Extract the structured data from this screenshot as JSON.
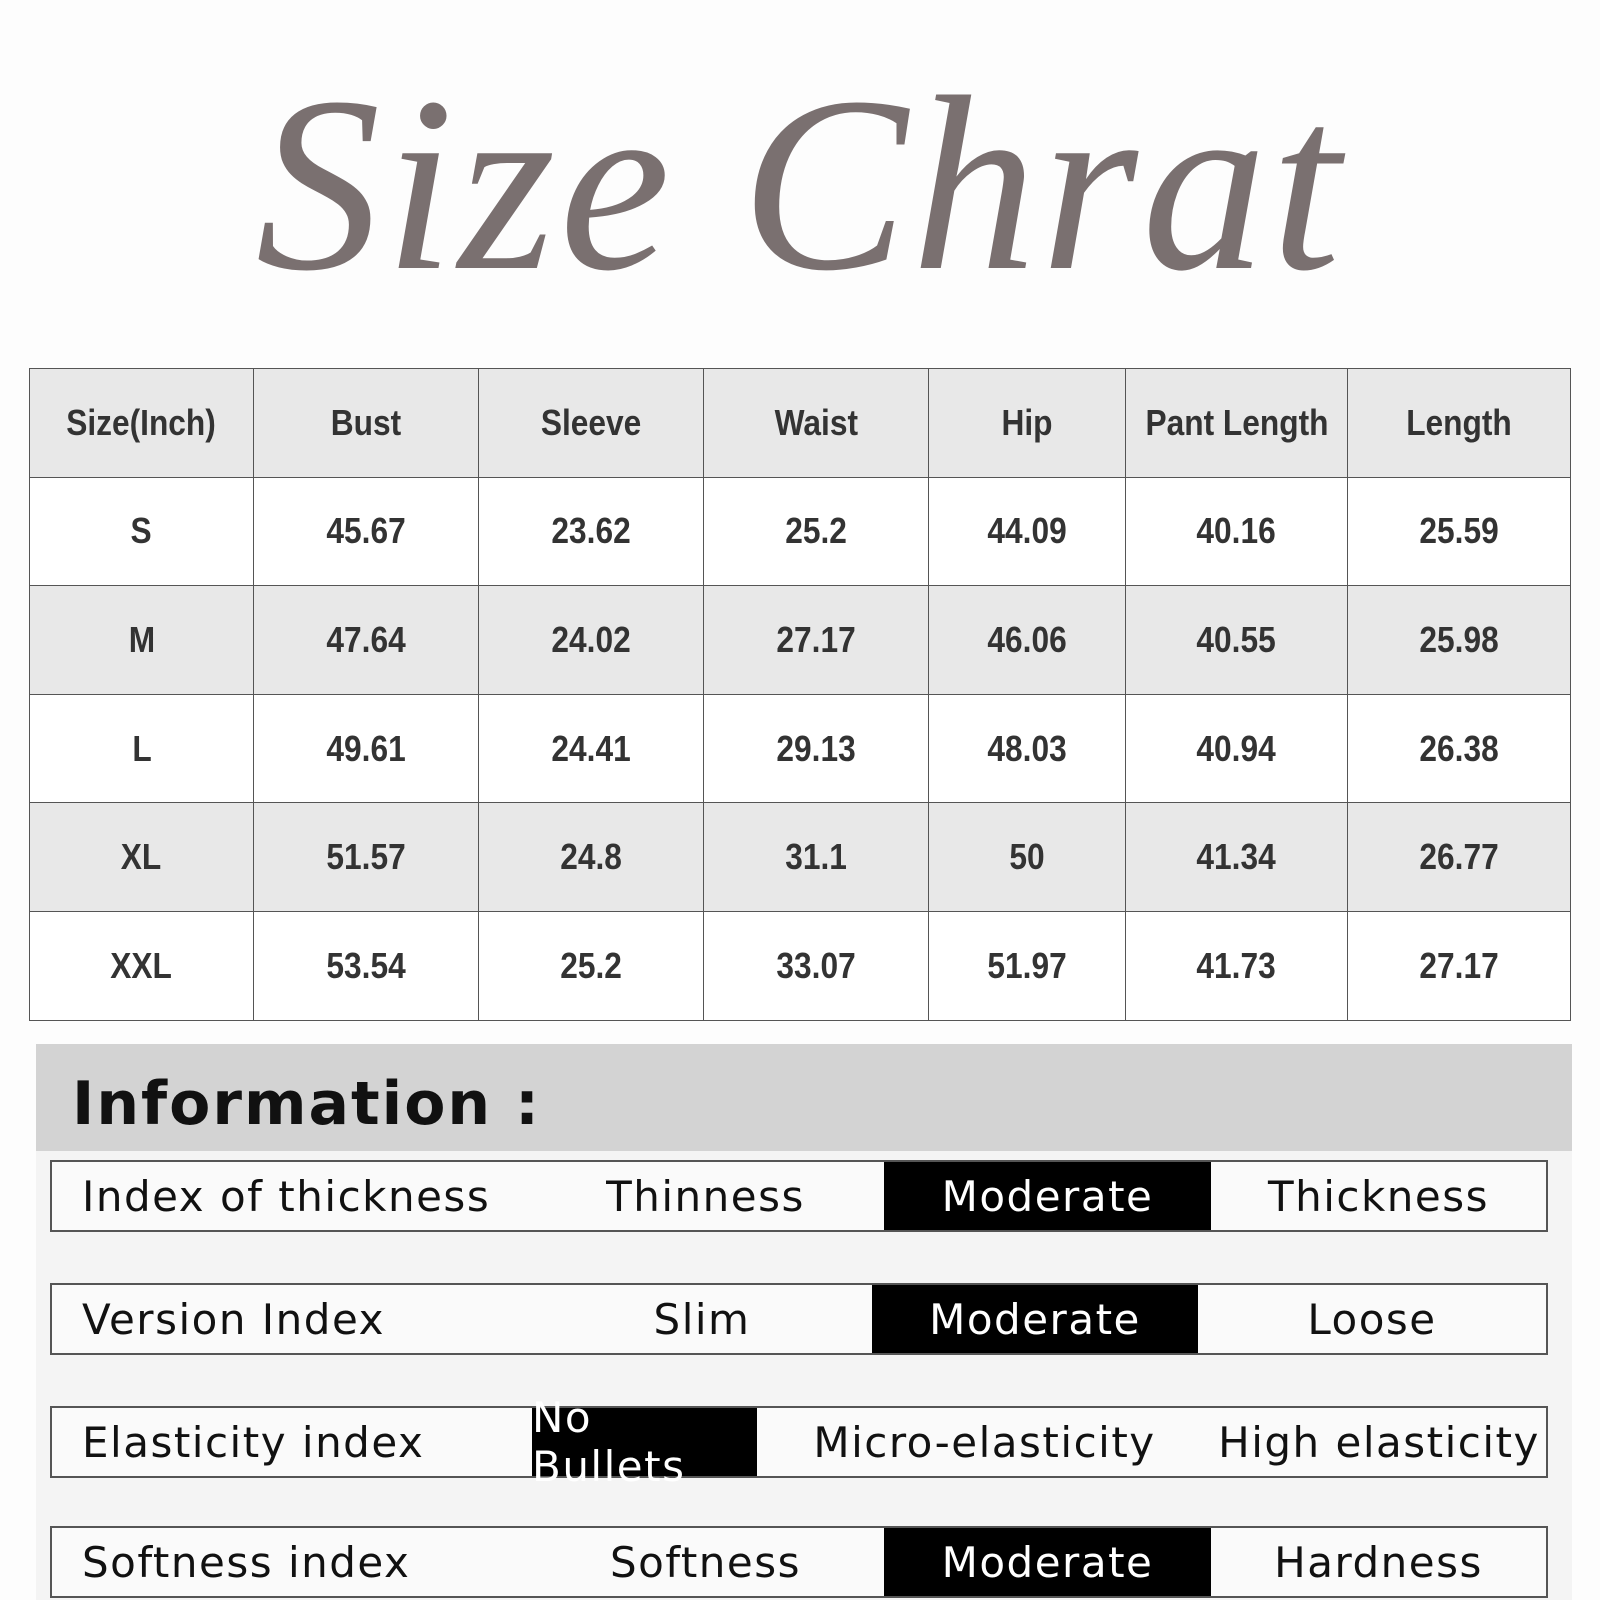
{
  "title": "Size Chrat",
  "table": {
    "header": [
      "Size(Inch)",
      "Bust",
      "Sleeve",
      "Waist",
      "Hip",
      "Pant Length",
      "Length"
    ],
    "rows": [
      [
        "S",
        "45.67",
        "23.62",
        "25.2",
        "44.09",
        "40.16",
        "25.59"
      ],
      [
        "M",
        "47.64",
        "24.02",
        "27.17",
        "46.06",
        "40.55",
        "25.98"
      ],
      [
        "L",
        "49.61",
        "24.41",
        "29.13",
        "48.03",
        "40.94",
        "26.38"
      ],
      [
        "XL",
        "51.57",
        "24.8",
        "31.1",
        "50",
        "41.34",
        "26.77"
      ],
      [
        "XXL",
        "53.54",
        "25.2",
        "33.07",
        "51.97",
        "41.73",
        "27.17"
      ]
    ]
  },
  "information": {
    "title": "Information :",
    "rows": [
      {
        "label": "Index of thickness",
        "options": [
          "Thinness",
          "Moderate",
          "Thickness"
        ],
        "selected": 1
      },
      {
        "label": "Version Index",
        "options": [
          "Slim",
          "Moderate",
          "Loose"
        ],
        "selected": 1
      },
      {
        "label": "Elasticity index",
        "options": [
          "No Bullets",
          "Micro-elasticity",
          "High elasticity"
        ],
        "selected": 0
      },
      {
        "label": "Softness index",
        "options": [
          "Softness",
          "Moderate",
          "Hardness"
        ],
        "selected": 1
      }
    ]
  }
}
